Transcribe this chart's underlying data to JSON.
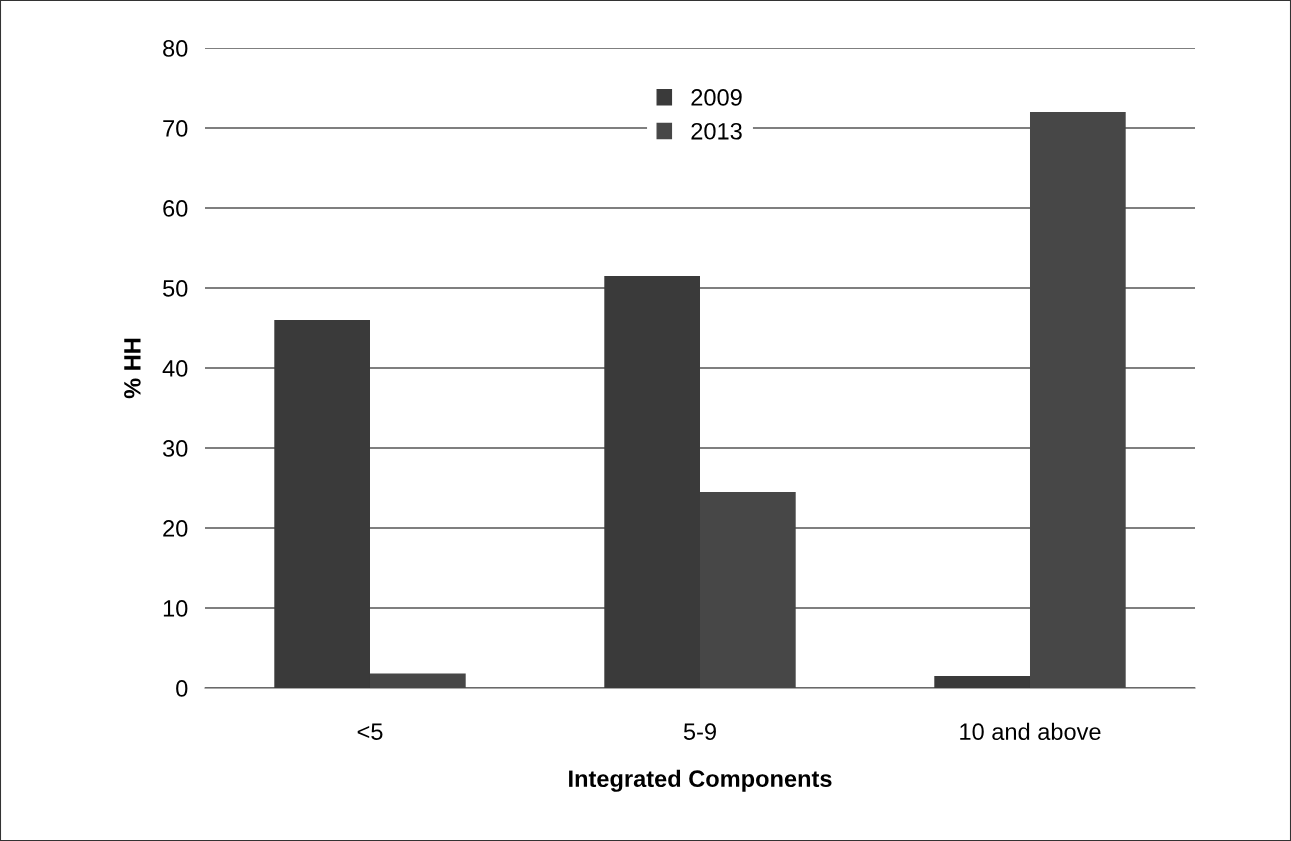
{
  "chart_data": {
    "type": "bar",
    "xlabel": "Integrated Components",
    "ylabel": "% HH",
    "categories": [
      "<5",
      "5-9",
      "10 and above"
    ],
    "series": [
      {
        "name": "2009",
        "color": "#3a3a3a",
        "values": [
          46,
          51.5,
          1.5
        ]
      },
      {
        "name": "2013",
        "color": "#474747",
        "values": [
          1.8,
          24.5,
          72
        ]
      }
    ],
    "ylim": [
      0,
      80
    ],
    "yticks": [
      0,
      10,
      20,
      30,
      40,
      50,
      60,
      70,
      80
    ],
    "grid": "y",
    "legend": "top"
  }
}
